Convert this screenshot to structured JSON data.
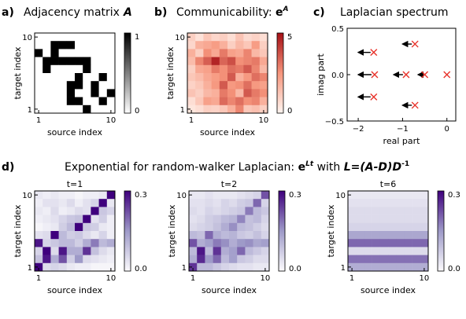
{
  "panels": {
    "a": {
      "letter": "a)",
      "title": "Adjacency matrix",
      "symbol": "A"
    },
    "b": {
      "letter": "b)",
      "title": "Communicability: ",
      "base": "e",
      "sup": "A"
    },
    "c": {
      "letter": "c)",
      "title": "Laplacian spectrum"
    },
    "d": {
      "letter": "d)",
      "title_pre": "Exponential for random-walker Laplacian: ",
      "base": "e",
      "sup": "Lt",
      "with": " with ",
      "formula": "L=(A-D)D",
      "formula_sup": "-1"
    }
  },
  "axis_labels": {
    "source": "source index",
    "target": "target index",
    "real": "real part",
    "imag": "imag part"
  },
  "colors": {
    "red_max": "#c0181e",
    "purple_max": "#46129a",
    "cross": "#e8322a",
    "arrow": "#000000"
  },
  "chart_data": [
    {
      "type": "heatmap",
      "id": "adjacency",
      "title": "Adjacency matrix A",
      "xlabel": "source index",
      "ylabel": "target index",
      "xticks": [
        "1",
        "10"
      ],
      "yticks": [
        "1",
        "10"
      ],
      "colorbar": {
        "min": 0,
        "max": 1,
        "ticks": [
          "0",
          "1"
        ]
      },
      "matrix": [
        [
          0,
          0,
          0,
          0,
          0,
          0,
          0,
          0,
          0,
          0
        ],
        [
          0,
          0,
          1,
          1,
          1,
          0,
          0,
          0,
          0,
          0
        ],
        [
          1,
          0,
          1,
          0,
          0,
          0,
          0,
          0,
          0,
          0
        ],
        [
          0,
          1,
          1,
          1,
          1,
          1,
          1,
          0,
          0,
          0
        ],
        [
          0,
          1,
          0,
          0,
          0,
          0,
          1,
          0,
          0,
          0
        ],
        [
          0,
          0,
          0,
          0,
          0,
          1,
          0,
          0,
          1,
          0
        ],
        [
          0,
          0,
          0,
          0,
          1,
          1,
          0,
          1,
          0,
          0
        ],
        [
          0,
          0,
          0,
          0,
          1,
          0,
          0,
          1,
          0,
          1
        ],
        [
          0,
          0,
          0,
          0,
          1,
          1,
          0,
          0,
          1,
          0
        ],
        [
          0,
          0,
          0,
          0,
          0,
          0,
          1,
          0,
          0,
          0
        ]
      ]
    },
    {
      "type": "heatmap",
      "id": "communicability",
      "title": "Communicability: e^A",
      "xlabel": "source index",
      "ylabel": "target index",
      "xticks": [
        "1",
        "10"
      ],
      "yticks": [
        "1",
        "10"
      ],
      "colorbar": {
        "min": 0,
        "max": 5,
        "ticks": [
          "0",
          "5"
        ]
      },
      "matrix": [
        [
          1.0,
          0.5,
          1.2,
          0.8,
          1.0,
          0.6,
          1.3,
          0.7,
          0.9,
          0.6
        ],
        [
          0.8,
          1.8,
          2.0,
          2.3,
          1.8,
          1.0,
          1.6,
          1.2,
          2.3,
          1.0
        ],
        [
          1.8,
          1.0,
          2.6,
          2.0,
          3.0,
          2.2,
          2.0,
          2.8,
          1.6,
          1.2
        ],
        [
          1.5,
          2.8,
          3.5,
          4.6,
          3.4,
          3.8,
          2.6,
          2.8,
          3.0,
          2.0
        ],
        [
          1.0,
          2.0,
          2.2,
          3.0,
          2.6,
          3.2,
          3.0,
          3.6,
          2.8,
          1.6
        ],
        [
          1.2,
          1.5,
          2.0,
          2.3,
          2.6,
          3.6,
          1.8,
          2.4,
          3.2,
          2.8
        ],
        [
          0.9,
          1.2,
          1.8,
          2.4,
          3.6,
          2.4,
          2.6,
          3.2,
          2.4,
          2.2
        ],
        [
          1.3,
          1.0,
          1.6,
          1.8,
          3.0,
          2.6,
          1.6,
          3.6,
          3.0,
          2.6
        ],
        [
          0.6,
          1.2,
          2.2,
          2.0,
          3.3,
          2.8,
          3.2,
          2.6,
          2.8,
          1.8
        ],
        [
          0.4,
          0.6,
          1.0,
          0.9,
          1.2,
          1.8,
          2.8,
          1.2,
          1.4,
          1.0
        ]
      ]
    },
    {
      "type": "scatter",
      "id": "spectrum",
      "title": "Laplacian spectrum",
      "xlabel": "real part",
      "ylabel": "imag part",
      "xlim": [
        -2.25,
        0.2
      ],
      "ylim": [
        -0.5,
        0.5
      ],
      "xticks": [
        -2,
        -1,
        0
      ],
      "yticks": [
        -0.5,
        0.0,
        0.5
      ],
      "tick_labels_x": [
        "−2",
        "−1",
        "0"
      ],
      "tick_labels_y": [
        "−0.5",
        "0.0",
        "0.5"
      ],
      "points": [
        {
          "x": 0.0,
          "y": 0.0
        },
        {
          "x": -0.72,
          "y": 0.33
        },
        {
          "x": -0.72,
          "y": -0.33
        },
        {
          "x": -1.65,
          "y": 0.24
        },
        {
          "x": -1.65,
          "y": -0.24
        },
        {
          "x": -0.5,
          "y": 0.0
        },
        {
          "x": -0.92,
          "y": 0.0
        },
        {
          "x": -1.63,
          "y": 0.0
        }
      ],
      "arrows": [
        {
          "from": [
            -0.72,
            0.33
          ],
          "to": [
            -1.0,
            0.33
          ]
        },
        {
          "from": [
            -0.72,
            -0.33
          ],
          "to": [
            -1.0,
            -0.33
          ]
        },
        {
          "from": [
            -1.65,
            0.24
          ],
          "to": [
            -2.0,
            0.24
          ]
        },
        {
          "from": [
            -1.65,
            -0.24
          ],
          "to": [
            -2.0,
            -0.24
          ]
        },
        {
          "from": [
            -0.92,
            0.0
          ],
          "to": [
            -1.2,
            0.0
          ]
        },
        {
          "from": [
            -1.63,
            0.0
          ],
          "to": [
            -2.0,
            0.0
          ]
        },
        {
          "from": [
            -0.5,
            0.0
          ],
          "to": [
            -0.65,
            0.0
          ]
        }
      ]
    },
    {
      "type": "heatmap",
      "id": "walker_t1",
      "title": "t=1",
      "xlabel": "source index",
      "ylabel": "target index",
      "xticks": [
        "1",
        "10"
      ],
      "yticks": [
        "1",
        "10"
      ],
      "colorbar": {
        "min": 0.0,
        "max": 0.3,
        "ticks": [
          "0.0",
          "0.3"
        ]
      },
      "matrix": [
        [
          0.03,
          0.02,
          0.03,
          0.02,
          0.02,
          0.01,
          0.02,
          0.02,
          0.03,
          0.3
        ],
        [
          0.02,
          0.04,
          0.04,
          0.03,
          0.05,
          0.02,
          0.04,
          0.06,
          0.3,
          0.03
        ],
        [
          0.03,
          0.02,
          0.05,
          0.02,
          0.03,
          0.05,
          0.04,
          0.3,
          0.08,
          0.06
        ],
        [
          0.02,
          0.03,
          0.04,
          0.06,
          0.08,
          0.09,
          0.3,
          0.04,
          0.07,
          0.02
        ],
        [
          0.01,
          0.02,
          0.03,
          0.07,
          0.1,
          0.3,
          0.08,
          0.07,
          0.03,
          0.02
        ],
        [
          0.04,
          0.05,
          0.3,
          0.1,
          0.07,
          0.08,
          0.05,
          0.03,
          0.06,
          0.02
        ],
        [
          0.28,
          0.06,
          0.08,
          0.1,
          0.1,
          0.07,
          0.12,
          0.18,
          0.1,
          0.12
        ],
        [
          0.06,
          0.3,
          0.05,
          0.28,
          0.12,
          0.12,
          0.25,
          0.09,
          0.05,
          0.03
        ],
        [
          0.09,
          0.28,
          0.12,
          0.22,
          0.07,
          0.15,
          0.05,
          0.04,
          0.03,
          0.02
        ],
        [
          0.3,
          0.05,
          0.06,
          0.05,
          0.03,
          0.02,
          0.02,
          0.01,
          0.01,
          0.01
        ]
      ]
    },
    {
      "type": "heatmap",
      "id": "walker_t2",
      "title": "t=2",
      "xlabel": "source index",
      "ylabel": "target index",
      "xticks": [
        "1",
        "10"
      ],
      "yticks": [
        "1",
        "10"
      ],
      "colorbar": {
        "min": 0.0,
        "max": 0.3,
        "ticks": [
          "0.0",
          "0.3"
        ]
      },
      "matrix": [
        [
          0.03,
          0.03,
          0.04,
          0.03,
          0.03,
          0.03,
          0.04,
          0.05,
          0.06,
          0.22
        ],
        [
          0.04,
          0.04,
          0.05,
          0.04,
          0.06,
          0.05,
          0.07,
          0.08,
          0.2,
          0.06
        ],
        [
          0.05,
          0.04,
          0.06,
          0.05,
          0.06,
          0.07,
          0.08,
          0.18,
          0.1,
          0.08
        ],
        [
          0.04,
          0.05,
          0.07,
          0.08,
          0.1,
          0.11,
          0.17,
          0.09,
          0.1,
          0.06
        ],
        [
          0.05,
          0.06,
          0.07,
          0.09,
          0.12,
          0.16,
          0.1,
          0.09,
          0.07,
          0.05
        ],
        [
          0.1,
          0.09,
          0.2,
          0.12,
          0.1,
          0.11,
          0.08,
          0.07,
          0.09,
          0.06
        ],
        [
          0.22,
          0.12,
          0.14,
          0.18,
          0.16,
          0.12,
          0.15,
          0.16,
          0.13,
          0.14
        ],
        [
          0.1,
          0.28,
          0.1,
          0.25,
          0.12,
          0.14,
          0.2,
          0.1,
          0.08,
          0.06
        ],
        [
          0.12,
          0.26,
          0.15,
          0.2,
          0.1,
          0.14,
          0.08,
          0.07,
          0.05,
          0.05
        ],
        [
          0.25,
          0.1,
          0.1,
          0.08,
          0.06,
          0.05,
          0.04,
          0.04,
          0.03,
          0.03
        ]
      ]
    },
    {
      "type": "heatmap",
      "id": "walker_t6",
      "title": "t=6",
      "xlabel": "source index",
      "ylabel": "target index",
      "xticks": [
        "1",
        "10"
      ],
      "yticks": [
        "1",
        "10"
      ],
      "colorbar": {
        "min": 0.0,
        "max": 0.3,
        "ticks": [
          "0.0",
          "0.3"
        ]
      },
      "matrix": [
        [
          0.03,
          0.03,
          0.03,
          0.03,
          0.03,
          0.03,
          0.03,
          0.03,
          0.03,
          0.03
        ],
        [
          0.04,
          0.04,
          0.04,
          0.04,
          0.04,
          0.04,
          0.04,
          0.04,
          0.04,
          0.04
        ],
        [
          0.05,
          0.05,
          0.05,
          0.05,
          0.05,
          0.05,
          0.05,
          0.05,
          0.05,
          0.05
        ],
        [
          0.05,
          0.05,
          0.05,
          0.05,
          0.05,
          0.05,
          0.05,
          0.05,
          0.05,
          0.05
        ],
        [
          0.06,
          0.06,
          0.06,
          0.06,
          0.06,
          0.06,
          0.06,
          0.06,
          0.06,
          0.06
        ],
        [
          0.13,
          0.13,
          0.13,
          0.13,
          0.13,
          0.13,
          0.13,
          0.13,
          0.13,
          0.13
        ],
        [
          0.2,
          0.2,
          0.2,
          0.2,
          0.2,
          0.2,
          0.2,
          0.2,
          0.2,
          0.2
        ],
        [
          0.05,
          0.05,
          0.05,
          0.05,
          0.05,
          0.05,
          0.05,
          0.05,
          0.05,
          0.05
        ],
        [
          0.19,
          0.19,
          0.19,
          0.19,
          0.19,
          0.19,
          0.19,
          0.19,
          0.19,
          0.19
        ],
        [
          0.12,
          0.12,
          0.12,
          0.12,
          0.12,
          0.12,
          0.12,
          0.12,
          0.12,
          0.12
        ]
      ]
    }
  ]
}
